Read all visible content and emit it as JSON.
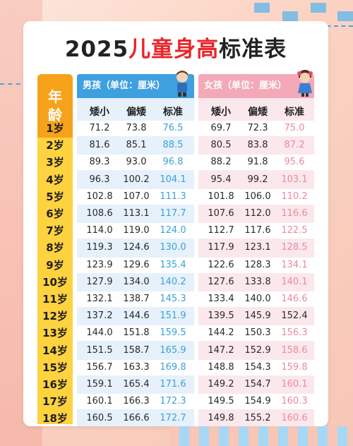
{
  "title_prefix": "2025",
  "title_highlight": "儿童身高",
  "title_suffix": "标准表",
  "age_header_line1": "年",
  "age_header_line2": "龄",
  "boy_banner": "男孩（单位：厘米）",
  "girl_banner": "女孩（单位：厘米）",
  "columns": [
    "矮小",
    "偏矮",
    "标准"
  ],
  "colors": {
    "boy_std": "#3aa1d8",
    "girl_std": "#ec8a99",
    "age_col": "#ffd23f",
    "age_head": "#f7a21b",
    "boy_banner": "#3fa0e0",
    "girl_banner": "#f3a9b7"
  },
  "rows": [
    {
      "age": "1岁",
      "boy": [
        "71.2",
        "73.8",
        "76.5"
      ],
      "girl": [
        "69.7",
        "72.3",
        "75.0"
      ]
    },
    {
      "age": "2岁",
      "boy": [
        "81.6",
        "85.1",
        "88.5"
      ],
      "girl": [
        "80.5",
        "83.8",
        "87.2"
      ]
    },
    {
      "age": "3岁",
      "boy": [
        "89.3",
        "93.0",
        "96.8"
      ],
      "girl": [
        "88.2",
        "91.8",
        "95.6"
      ]
    },
    {
      "age": "4岁",
      "boy": [
        "96.3",
        "100.2",
        "104.1"
      ],
      "girl": [
        "95.4",
        "99.2",
        "103.1"
      ]
    },
    {
      "age": "5岁",
      "boy": [
        "102.8",
        "107.0",
        "111.3"
      ],
      "girl": [
        "101.8",
        "106.0",
        "110.2"
      ]
    },
    {
      "age": "6岁",
      "boy": [
        "108.6",
        "113.1",
        "117.7"
      ],
      "girl": [
        "107.6",
        "112.0",
        "116.6"
      ]
    },
    {
      "age": "7岁",
      "boy": [
        "114.0",
        "119.0",
        "124.0"
      ],
      "girl": [
        "112.7",
        "117.6",
        "122.5"
      ]
    },
    {
      "age": "8岁",
      "boy": [
        "119.3",
        "124.6",
        "130.0"
      ],
      "girl": [
        "117.9",
        "123.1",
        "128.5"
      ]
    },
    {
      "age": "9岁",
      "boy": [
        "123.9",
        "129.6",
        "135.4"
      ],
      "girl": [
        "122.6",
        "128.3",
        "134.1"
      ]
    },
    {
      "age": "10岁",
      "boy": [
        "127.9",
        "134.0",
        "140.2"
      ],
      "girl": [
        "127.6",
        "133.8",
        "140.1"
      ]
    },
    {
      "age": "11岁",
      "boy": [
        "132.1",
        "138.7",
        "145.3"
      ],
      "girl": [
        "133.4",
        "140.0",
        "146.6"
      ]
    },
    {
      "age": "12岁",
      "boy": [
        "137.2",
        "144.6",
        "151.9"
      ],
      "girl": [
        "139.5",
        "145.9",
        "152.4"
      ]
    },
    {
      "age": "13岁",
      "boy": [
        "144.0",
        "151.8",
        "159.5"
      ],
      "girl": [
        "144.2",
        "150.3",
        "156.3"
      ]
    },
    {
      "age": "14岁",
      "boy": [
        "151.5",
        "158.7",
        "165.9"
      ],
      "girl": [
        "147.2",
        "152.9",
        "158.6"
      ]
    },
    {
      "age": "15岁",
      "boy": [
        "156.7",
        "163.3",
        "169.8"
      ],
      "girl": [
        "148.8",
        "154.3",
        "159.8"
      ]
    },
    {
      "age": "16岁",
      "boy": [
        "159.1",
        "165.4",
        "171.6"
      ],
      "girl": [
        "149.2",
        "154.7",
        "160.1"
      ]
    },
    {
      "age": "17岁",
      "boy": [
        "160.1",
        "166.3",
        "172.3"
      ],
      "girl": [
        "149.5",
        "154.9",
        "160.3"
      ]
    },
    {
      "age": "18岁",
      "boy": [
        "160.5",
        "166.6",
        "172.7"
      ],
      "girl": [
        "149.8",
        "155.2",
        "160.6"
      ]
    }
  ]
}
